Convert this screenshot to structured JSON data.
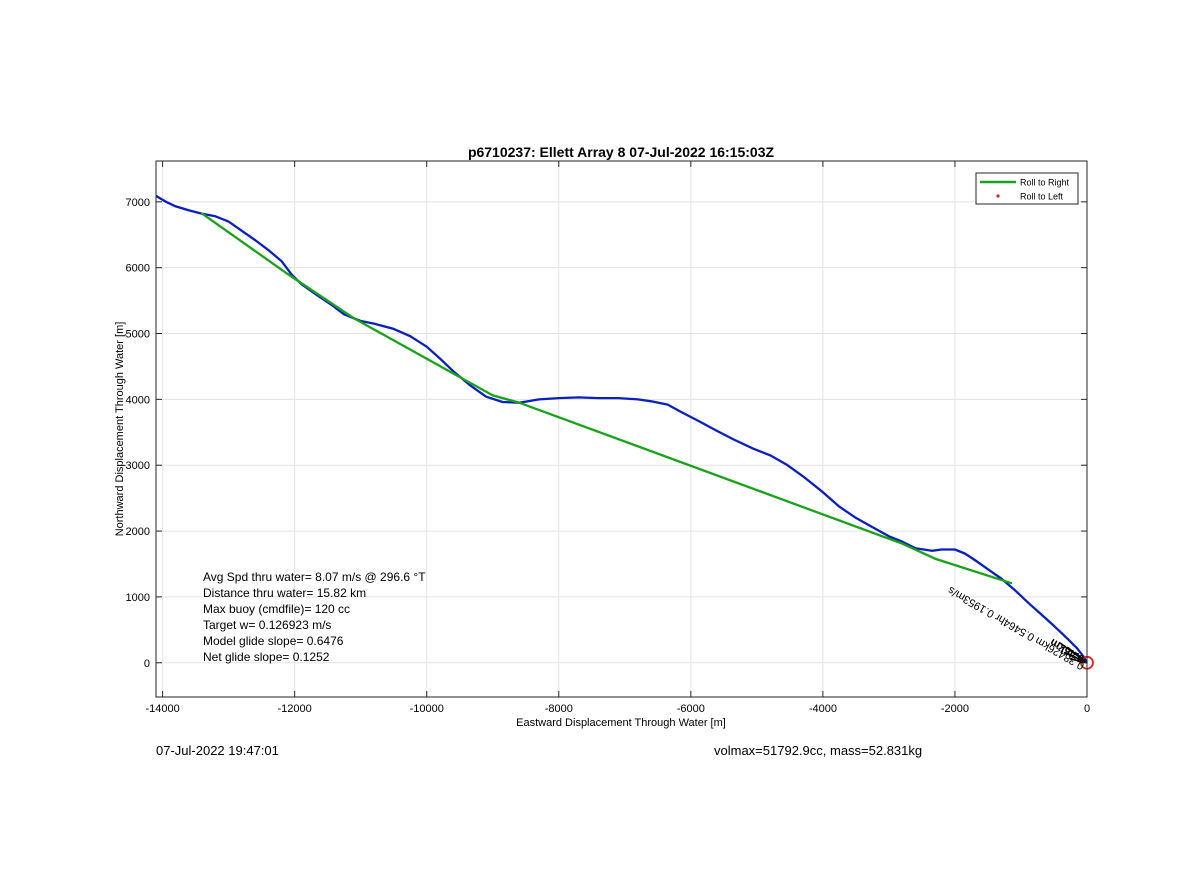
{
  "chart_data": {
    "type": "line",
    "title": "p6710237: Ellett Array 8 07-Jul-2022 16:15:03Z",
    "xlabel": "Eastward Displacement Through Water [m]",
    "ylabel": "Northward Displacement Through Water [m]",
    "xlim": [
      -14100,
      0
    ],
    "ylim": [
      -520,
      7620
    ],
    "xticks": [
      -14000,
      -12000,
      -10000,
      -8000,
      -6000,
      -4000,
      -2000,
      0
    ],
    "yticks": [
      0,
      1000,
      2000,
      3000,
      4000,
      5000,
      6000,
      7000
    ],
    "grid": true,
    "legend_position": "top-right",
    "legend": [
      {
        "label": "Roll to Right",
        "color": "#1aa31a",
        "marker": "line"
      },
      {
        "label": "Roll to Left",
        "color": "#e0201c",
        "marker": "dot"
      }
    ],
    "series": [
      {
        "name": "",
        "color": "#0a1fbf",
        "points": [
          [
            -14100,
            7090
          ],
          [
            -13950,
            7000
          ],
          [
            -13800,
            6930
          ],
          [
            -13600,
            6870
          ],
          [
            -13400,
            6820
          ],
          [
            -13200,
            6780
          ],
          [
            -13000,
            6700
          ],
          [
            -12800,
            6560
          ],
          [
            -12600,
            6420
          ],
          [
            -12400,
            6270
          ],
          [
            -12200,
            6100
          ],
          [
            -12050,
            5900
          ],
          [
            -11900,
            5750
          ],
          [
            -11700,
            5610
          ],
          [
            -11450,
            5440
          ],
          [
            -11250,
            5290
          ],
          [
            -11000,
            5190
          ],
          [
            -10800,
            5150
          ],
          [
            -10500,
            5070
          ],
          [
            -10250,
            4960
          ],
          [
            -10000,
            4800
          ],
          [
            -9800,
            4620
          ],
          [
            -9600,
            4430
          ],
          [
            -9350,
            4220
          ],
          [
            -9100,
            4040
          ],
          [
            -8850,
            3960
          ],
          [
            -8600,
            3950
          ],
          [
            -8300,
            4000
          ],
          [
            -8000,
            4020
          ],
          [
            -7700,
            4030
          ],
          [
            -7400,
            4020
          ],
          [
            -7100,
            4020
          ],
          [
            -6800,
            4000
          ],
          [
            -6600,
            3970
          ],
          [
            -6350,
            3920
          ],
          [
            -6150,
            3810
          ],
          [
            -5900,
            3680
          ],
          [
            -5600,
            3520
          ],
          [
            -5350,
            3390
          ],
          [
            -5050,
            3250
          ],
          [
            -4800,
            3150
          ],
          [
            -4550,
            3010
          ],
          [
            -4300,
            2830
          ],
          [
            -4000,
            2590
          ],
          [
            -3750,
            2370
          ],
          [
            -3500,
            2200
          ],
          [
            -3250,
            2060
          ],
          [
            -3000,
            1920
          ],
          [
            -2800,
            1840
          ],
          [
            -2600,
            1740
          ],
          [
            -2350,
            1700
          ],
          [
            -2200,
            1720
          ],
          [
            -2000,
            1720
          ],
          [
            -1850,
            1660
          ],
          [
            -1700,
            1560
          ],
          [
            -1500,
            1420
          ],
          [
            -1300,
            1280
          ],
          [
            -1100,
            1110
          ],
          [
            -900,
            920
          ],
          [
            -700,
            740
          ],
          [
            -500,
            560
          ],
          [
            -300,
            370
          ],
          [
            -150,
            220
          ],
          [
            -50,
            90
          ],
          [
            0,
            0
          ]
        ]
      },
      {
        "name": "Roll to Right",
        "color": "#1aa31a",
        "segments": [
          [
            [
              -13400,
              6820
            ],
            [
              -12100,
              5900
            ]
          ],
          [
            [
              -12100,
              5900
            ],
            [
              -11100,
              5230
            ]
          ],
          [
            [
              -11100,
              5230
            ],
            [
              -9000,
              4060
            ]
          ],
          [
            [
              -9000,
              4060
            ],
            [
              -8600,
              3950
            ]
          ],
          [
            [
              -8600,
              3950
            ],
            [
              -2800,
              1810
            ]
          ],
          [
            [
              -2800,
              1810
            ],
            [
              -2300,
              1580
            ]
          ],
          [
            [
              -2300,
              1580
            ],
            [
              -1150,
              1210
            ]
          ]
        ]
      }
    ],
    "end_marker": {
      "x": 0,
      "y": 0,
      "color": "#e0201c"
    },
    "annotations": [
      {
        "text": "Avg Spd thru water=  8.07 m/s @ 296.6 °T"
      },
      {
        "text": "Distance thru water= 15.82 km"
      },
      {
        "text": "Max buoy (cmdfile)= 120 cc"
      },
      {
        "text": "Target w= 0.126923 m/s"
      },
      {
        "text": "Model glide slope= 0.6476"
      },
      {
        "text": "Net glide slope= 0.1252"
      }
    ],
    "rotated_label": "0.38426km 0.5464hr 0.1953m/s",
    "rotated_label_overlap": "0.46km"
  },
  "footer": {
    "timestamp": "07-Jul-2022 19:47:01",
    "mass_info": "volmax=51792.9cc, mass=52.831kg"
  }
}
